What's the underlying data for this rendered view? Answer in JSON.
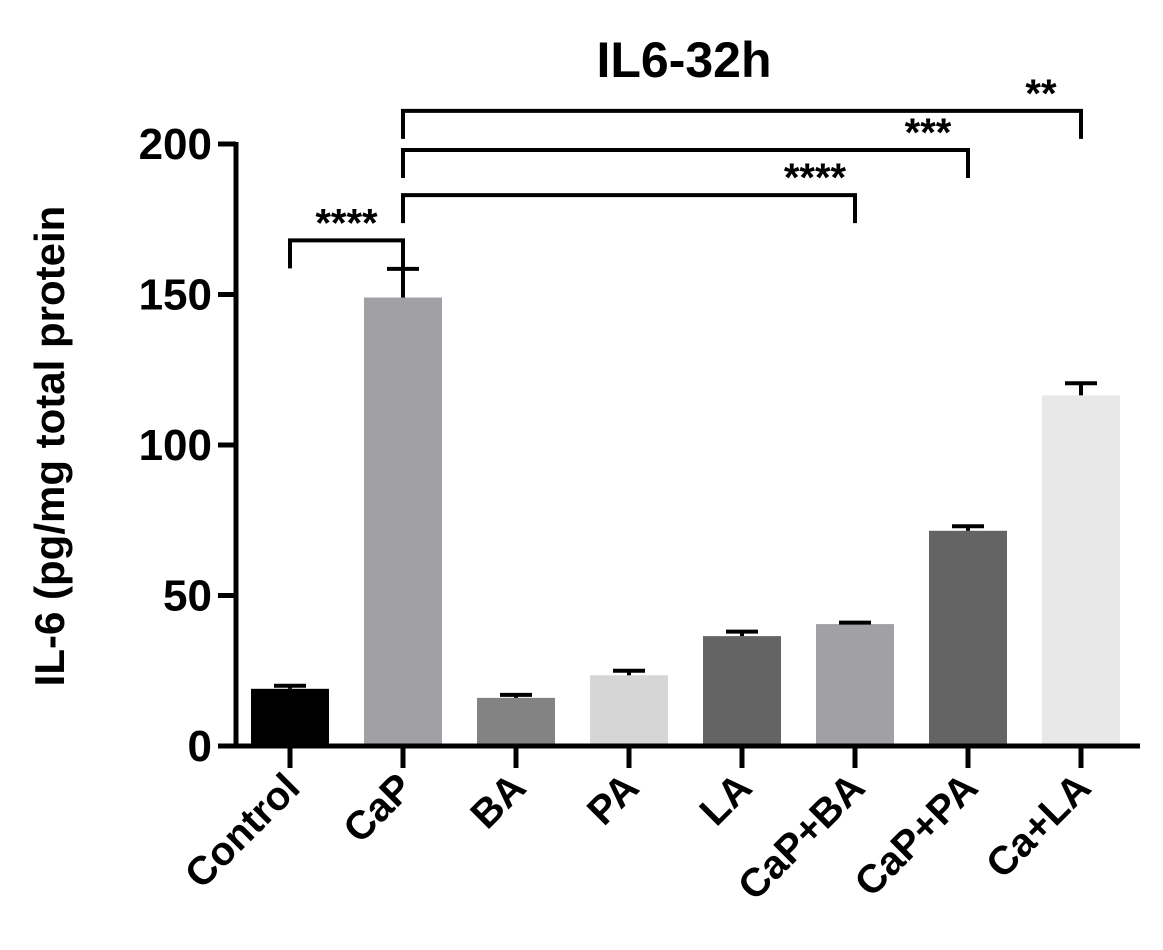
{
  "chart_data": {
    "type": "bar",
    "title": "IL6-32h",
    "ylabel": "IL-6 (pg/mg total protein",
    "xlabel": "",
    "ylim": [
      0,
      200
    ],
    "yticks": [
      0,
      50,
      100,
      150,
      200
    ],
    "categories": [
      "Control",
      "CaP",
      "BA",
      "PA",
      "LA",
      "CaP+BA",
      "CaP+PA",
      "Ca+LA"
    ],
    "values": [
      19,
      149,
      16,
      23.5,
      36.5,
      40.5,
      71.5,
      116.5
    ],
    "errors": [
      1,
      9.5,
      1,
      1.5,
      1.5,
      0.5,
      1.5,
      4
    ],
    "colors": [
      "#000000",
      "#a0a0a5",
      "#838383",
      "#d6d6d6",
      "#646464",
      "#a0a0a5",
      "#646464",
      "#e8e8e8"
    ],
    "significance": [
      {
        "from": "Control",
        "to": "CaP",
        "label": "****",
        "y": 168
      },
      {
        "from": "CaP",
        "to": "CaP+BA",
        "label": "****",
        "y": 183
      },
      {
        "from": "CaP",
        "to": "CaP+PA",
        "label": "***",
        "y": 198
      },
      {
        "from": "CaP",
        "to": "Ca+LA",
        "label": "**",
        "y": 211
      }
    ],
    "grid": false,
    "legend": "none"
  }
}
